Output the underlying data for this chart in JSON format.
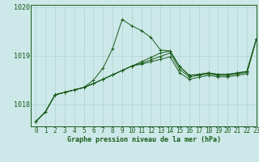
{
  "title": "Graphe pression niveau de la mer (hPa)",
  "bg_color": "#cce8e8",
  "line_color": "#1a5c1a",
  "grid_color": "#b0d0d0",
  "series": [
    [
      1017.65,
      1017.85,
      1018.2,
      1018.25,
      1018.3,
      1018.35,
      1018.5,
      1018.75,
      1019.15,
      1019.75,
      1019.62,
      1019.52,
      1019.38,
      1019.12,
      1019.1,
      1018.78,
      1018.6,
      1018.62,
      1018.65,
      1018.62,
      1018.62,
      1018.65,
      1018.68,
      1019.35
    ],
    [
      1017.65,
      1017.85,
      1018.2,
      1018.25,
      1018.3,
      1018.35,
      1018.43,
      1018.52,
      1018.61,
      1018.7,
      1018.79,
      1018.88,
      1018.97,
      1019.06,
      1019.1,
      1018.78,
      1018.6,
      1018.62,
      1018.65,
      1018.62,
      1018.62,
      1018.65,
      1018.68,
      1019.35
    ],
    [
      1017.65,
      1017.85,
      1018.2,
      1018.25,
      1018.3,
      1018.35,
      1018.43,
      1018.52,
      1018.61,
      1018.7,
      1018.79,
      1018.85,
      1018.92,
      1018.99,
      1019.06,
      1018.72,
      1018.57,
      1018.6,
      1018.63,
      1018.6,
      1018.6,
      1018.63,
      1018.66,
      1019.35
    ],
    [
      1017.65,
      1017.85,
      1018.2,
      1018.25,
      1018.3,
      1018.35,
      1018.43,
      1018.52,
      1018.61,
      1018.7,
      1018.79,
      1018.83,
      1018.88,
      1018.93,
      1018.98,
      1018.65,
      1018.52,
      1018.56,
      1018.6,
      1018.57,
      1018.57,
      1018.6,
      1018.63,
      1019.35
    ]
  ],
  "xlim": [
    -0.5,
    23
  ],
  "ylim": [
    1017.55,
    1020.05
  ],
  "yticks": [
    1018,
    1019,
    1020
  ],
  "ytick_labels": [
    "1018",
    "1019",
    "1020"
  ],
  "xticks": [
    0,
    1,
    2,
    3,
    4,
    5,
    6,
    7,
    8,
    9,
    10,
    11,
    12,
    13,
    14,
    15,
    16,
    17,
    18,
    19,
    20,
    21,
    22,
    23
  ],
  "xlabel_fontsize": 6.0,
  "tick_fontsize": 5.5
}
